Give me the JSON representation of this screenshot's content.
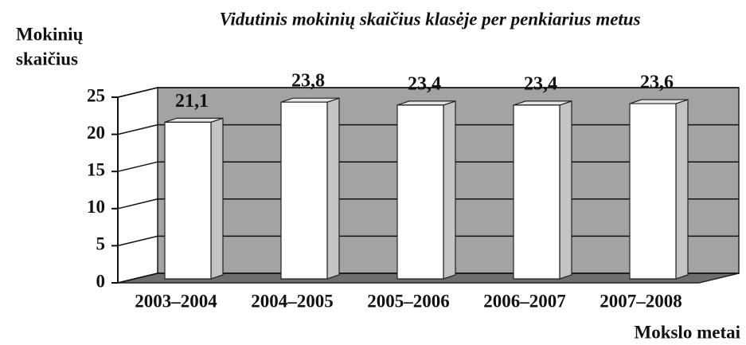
{
  "chart_data": {
    "type": "bar3d",
    "title": "Vidutinis mokinių skaičius klasėje per penkiarius metus",
    "ylabel_lines": [
      "Mokinių",
      "skaičius"
    ],
    "xlabel": "Mokslo metai",
    "categories": [
      "2003–2004",
      "2004–2005",
      "2005–2006",
      "2006–2007",
      "2007–2008"
    ],
    "values": [
      21.1,
      23.8,
      23.4,
      23.4,
      23.6
    ],
    "value_labels": [
      "21,1",
      "23,8",
      "23,4",
      "23,4",
      "23,6"
    ],
    "color": "#ffffff",
    "ylim": [
      0,
      25
    ],
    "yticks": [
      0,
      5,
      10,
      15,
      20,
      25
    ],
    "grid": true
  }
}
